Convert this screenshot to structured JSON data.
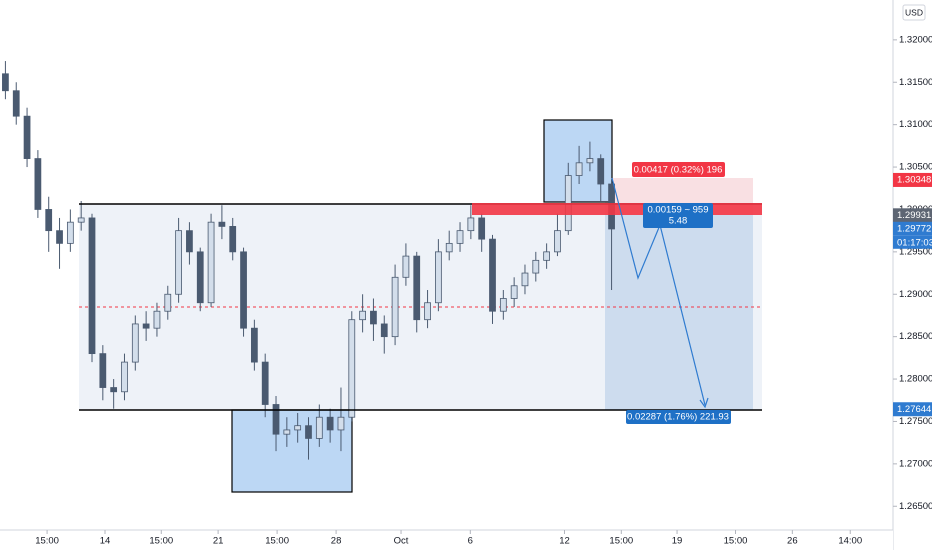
{
  "chart_data": {
    "type": "candlestick",
    "currency": "USD",
    "x": [
      1,
      3,
      5,
      7,
      9,
      11,
      13,
      15,
      17,
      19,
      21,
      23,
      25,
      27,
      29,
      31,
      33,
      35,
      37,
      39,
      41,
      43,
      45,
      47,
      49,
      51,
      53,
      55,
      57,
      59,
      61,
      63,
      65,
      67,
      69,
      71,
      73,
      75,
      77,
      79,
      81,
      83,
      85,
      87,
      89,
      91,
      93,
      95,
      97,
      99,
      101,
      103,
      105,
      107,
      109,
      111,
      113
    ],
    "open": [
      1.316,
      1.314,
      1.311,
      1.306,
      1.3,
      1.2975,
      1.296,
      1.2985,
      1.299,
      1.283,
      1.279,
      1.2785,
      1.282,
      1.2865,
      1.286,
      1.288,
      1.29,
      1.2975,
      1.295,
      1.289,
      1.2985,
      1.298,
      1.295,
      1.286,
      1.282,
      1.277,
      1.2735,
      1.274,
      1.2745,
      1.273,
      1.2755,
      1.274,
      1.2755,
      1.287,
      1.288,
      1.2865,
      1.285,
      1.292,
      1.2945,
      1.287,
      1.289,
      1.295,
      1.296,
      1.2975,
      1.299,
      1.2965,
      1.288,
      1.2895,
      1.291,
      1.2925,
      1.294,
      1.295,
      1.2975,
      1.304,
      1.3055,
      1.306,
      1.303
    ],
    "high": [
      1.3175,
      1.315,
      1.312,
      1.307,
      1.3015,
      1.299,
      1.3,
      1.301,
      1.2995,
      1.284,
      1.28,
      1.283,
      1.2875,
      1.288,
      1.289,
      1.291,
      1.299,
      1.2985,
      1.2955,
      1.2995,
      1.3005,
      1.299,
      1.2955,
      1.287,
      1.283,
      1.278,
      1.2755,
      1.276,
      1.2755,
      1.277,
      1.2765,
      1.279,
      1.288,
      1.29,
      1.2895,
      1.2875,
      1.2935,
      1.296,
      1.295,
      1.2905,
      1.2965,
      1.2975,
      1.2985,
      1.3005,
      1.2995,
      1.297,
      1.2905,
      1.292,
      1.2935,
      1.295,
      1.296,
      1.2995,
      1.3055,
      1.3075,
      1.308,
      1.3065,
      1.3035
    ],
    "low": [
      1.313,
      1.31,
      1.305,
      1.299,
      1.295,
      1.293,
      1.295,
      1.2975,
      1.282,
      1.2775,
      1.2765,
      1.2775,
      1.281,
      1.2845,
      1.285,
      1.287,
      1.289,
      1.2935,
      1.288,
      1.2885,
      1.2965,
      1.294,
      1.285,
      1.281,
      1.2755,
      1.2715,
      1.272,
      1.2725,
      1.2705,
      1.272,
      1.2725,
      1.2715,
      1.275,
      1.2855,
      1.2845,
      1.283,
      1.284,
      1.291,
      1.2855,
      1.286,
      1.288,
      1.294,
      1.295,
      1.2965,
      1.295,
      1.2865,
      1.287,
      1.2885,
      1.29,
      1.2915,
      1.293,
      1.2945,
      1.297,
      1.303,
      1.3045,
      1.301,
      1.2905
    ],
    "close": [
      1.314,
      1.311,
      1.306,
      1.3,
      1.2975,
      1.296,
      1.2985,
      1.299,
      1.283,
      1.279,
      1.2785,
      1.282,
      1.2865,
      1.286,
      1.288,
      1.29,
      1.2975,
      1.295,
      1.289,
      1.2985,
      1.298,
      1.295,
      1.286,
      1.282,
      1.277,
      1.2735,
      1.274,
      1.2745,
      1.273,
      1.2755,
      1.274,
      1.2755,
      1.287,
      1.288,
      1.2865,
      1.285,
      1.292,
      1.2945,
      1.287,
      1.289,
      1.295,
      1.296,
      1.2975,
      1.299,
      1.2965,
      1.288,
      1.2895,
      1.291,
      1.2925,
      1.294,
      1.295,
      1.2975,
      1.304,
      1.3055,
      1.306,
      1.303,
      1.2977
    ],
    "up_color": "#d3deeb",
    "down_color": "#4a5a70",
    "wick_color": "#4a5a70",
    "xlim": [
      0,
      165
    ],
    "ylim": [
      1.2622,
      1.3247
    ],
    "grid": false,
    "yticks": [
      {
        "value": 1.32,
        "label": "1.32000"
      },
      {
        "value": 1.315,
        "label": "1.31500"
      },
      {
        "value": 1.31,
        "label": "1.31000"
      },
      {
        "value": 1.305,
        "label": "1.30500"
      },
      {
        "value": 1.3,
        "label": "1.30000"
      },
      {
        "value": 1.295,
        "label": "1.29500"
      },
      {
        "value": 1.29,
        "label": "1.29000"
      },
      {
        "value": 1.285,
        "label": "1.28500"
      },
      {
        "value": 1.28,
        "label": "1.28000"
      },
      {
        "value": 1.275,
        "label": "1.27500"
      },
      {
        "value": 1.27,
        "label": "1.27000"
      },
      {
        "value": 1.265,
        "label": "1.26500"
      }
    ],
    "xticks": [
      {
        "value": 8.7,
        "label": "15:00"
      },
      {
        "value": 19.4,
        "label": "14"
      },
      {
        "value": 29.8,
        "label": "15:00"
      },
      {
        "value": 40.3,
        "label": "21"
      },
      {
        "value": 51.2,
        "label": "15:00"
      },
      {
        "value": 62.1,
        "label": "28"
      },
      {
        "value": 74.1,
        "label": "Oct"
      },
      {
        "value": 86.9,
        "label": "6"
      },
      {
        "value": 104.3,
        "label": "12"
      },
      {
        "value": 114.8,
        "label": "15:00"
      },
      {
        "value": 125.1,
        "label": "19"
      },
      {
        "value": 135.9,
        "label": "15:00"
      },
      {
        "value": 146.4,
        "label": "26"
      },
      {
        "value": 157.1,
        "label": "14:00"
      }
    ],
    "price_tags": [
      {
        "value": 1.30348,
        "label": "1.30348",
        "color": "#f23645"
      },
      {
        "value": 1.29931,
        "label": "1.29931",
        "color": "#5d6573"
      },
      {
        "value": 1.29772,
        "label": "1.29772",
        "color": "#2f7bd0"
      },
      {
        "value": 1.27644,
        "label": "1.27644",
        "color": "#2f7bd0"
      }
    ],
    "countdown": "01:17:03",
    "annotations": [
      "0.00417 (0.32%) 196",
      "0.00159 ~ 959",
      "5.48",
      "0.02287 (1.76%) 221.93"
    ]
  }
}
